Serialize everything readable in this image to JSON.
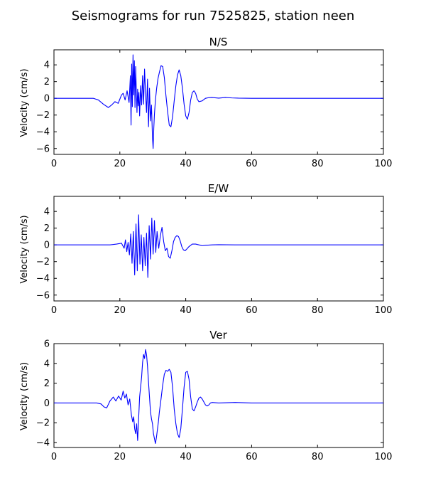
{
  "figure": {
    "title": "Seismograms for run 7525825, station neen"
  },
  "chart_data": [
    {
      "type": "line",
      "title": "N/S",
      "xlabel": "",
      "ylabel": "Velocity (cm/s)",
      "xlim": [
        0,
        100
      ],
      "ylim": [
        -6.7,
        5.8
      ],
      "xticks": [
        0,
        20,
        40,
        60,
        80,
        100
      ],
      "yticks": [
        -6,
        -4,
        -2,
        0,
        2,
        4
      ],
      "line_color": "#0000ff",
      "series": [
        {
          "x": [
            0,
            12,
            13.5,
            15,
            16.5,
            17.5,
            18.5,
            19.5,
            20.5,
            21,
            21.6,
            22.2,
            22.8,
            23.2,
            23.4,
            23.6,
            23.8,
            24,
            24.2,
            24.4,
            24.6,
            24.8,
            25,
            25.2,
            25.4,
            25.6,
            25.8,
            26,
            26.3,
            26.6,
            26.9,
            27.2,
            27.5,
            27.8,
            28.1,
            28.4,
            28.7,
            29,
            29.3,
            29.6,
            29.9,
            30.1,
            30.3,
            30.5,
            30.8,
            31.2,
            31.6,
            32,
            32.5,
            33,
            33.5,
            34,
            34.5,
            35,
            35.5,
            36,
            36.5,
            37,
            37.5,
            38,
            38.5,
            39,
            39.5,
            40,
            40.5,
            41,
            41.5,
            42,
            42.5,
            43,
            43.5,
            44,
            45,
            46,
            47,
            48,
            50,
            52,
            54,
            56,
            60,
            70,
            80,
            90,
            100
          ],
          "y": [
            0,
            0,
            -0.2,
            -0.7,
            -1.1,
            -0.8,
            -0.4,
            -0.6,
            0.4,
            0.6,
            -0.2,
            0.9,
            -0.5,
            2.7,
            -3.2,
            4.1,
            -1,
            5.2,
            0.4,
            4.5,
            -1.1,
            3.8,
            0.9,
            -1.7,
            1.1,
            -0.9,
            0.7,
            -2.1,
            1.5,
            -0.8,
            2.7,
            -0.7,
            3.5,
            0.6,
            -1.7,
            2.3,
            -3.4,
            1.2,
            -2.7,
            -0.8,
            -4.6,
            -6,
            -3.6,
            -1.9,
            -0.2,
            1.3,
            2.4,
            3.1,
            3.9,
            3.8,
            2.5,
            0.3,
            -1.6,
            -3.2,
            -3.4,
            -2.2,
            -0.3,
            1.5,
            2.8,
            3.4,
            2.7,
            1.2,
            -0.7,
            -2.1,
            -2.5,
            -1.7,
            -0.2,
            0.7,
            0.9,
            0.6,
            -0.1,
            -0.4,
            -0.3,
            0,
            0.08,
            0.1,
            0.02,
            0.1,
            0.05,
            0.02,
            0,
            0,
            0,
            0,
            0
          ]
        }
      ]
    },
    {
      "type": "line",
      "title": "E/W",
      "xlabel": "",
      "ylabel": "Velocity (cm/s)",
      "xlim": [
        0,
        100
      ],
      "ylim": [
        -6.7,
        5.8
      ],
      "xticks": [
        0,
        20,
        40,
        60,
        80,
        100
      ],
      "yticks": [
        -6,
        -4,
        -2,
        0,
        2,
        4
      ],
      "line_color": "#0000ff",
      "series": [
        {
          "x": [
            0,
            17,
            19,
            20.5,
            21.3,
            21.7,
            22.1,
            22.5,
            22.9,
            23.3,
            23.7,
            24.1,
            24.5,
            24.9,
            25.3,
            25.7,
            26.1,
            26.5,
            26.9,
            27.3,
            27.7,
            28.1,
            28.5,
            28.9,
            29.3,
            29.7,
            30.1,
            30.5,
            30.9,
            31.3,
            31.8,
            32.3,
            32.8,
            33.3,
            33.8,
            34.3,
            34.8,
            35.3,
            35.8,
            36.3,
            36.8,
            37.3,
            37.8,
            38.3,
            38.8,
            39.3,
            39.8,
            40.3,
            41,
            42,
            43,
            44,
            45,
            46,
            48,
            50,
            55,
            60,
            70,
            80,
            90,
            100
          ],
          "y": [
            0,
            0,
            0.1,
            0.2,
            -0.4,
            0.6,
            -0.8,
            0.3,
            -1.2,
            1.3,
            -2.2,
            1.6,
            -3.6,
            2.5,
            -3.1,
            3.6,
            -2.3,
            1.2,
            -3.1,
            0.9,
            -2.5,
            1.4,
            -3.9,
            2.3,
            -1.7,
            3.2,
            -1.1,
            2.9,
            -0.9,
            1.6,
            -0.4,
            1.1,
            2.1,
            0.4,
            -0.7,
            -0.4,
            -1.4,
            -1.6,
            -0.7,
            0.4,
            0.9,
            1.1,
            1,
            0.5,
            -0.2,
            -0.6,
            -0.7,
            -0.5,
            -0.2,
            0.1,
            0.1,
            0,
            -0.1,
            -0.05,
            0,
            0.02,
            0,
            0,
            0,
            0,
            0,
            0
          ]
        }
      ]
    },
    {
      "type": "line",
      "title": "Ver",
      "xlabel": "",
      "ylabel": "Velocity (cm/s)",
      "xlim": [
        0,
        100
      ],
      "ylim": [
        -4.5,
        6
      ],
      "xticks": [
        0,
        20,
        40,
        60,
        80,
        100
      ],
      "yticks": [
        -4,
        -2,
        0,
        2,
        4,
        6
      ],
      "line_color": "#0000ff",
      "series": [
        {
          "x": [
            0,
            13,
            14.3,
            15.2,
            16,
            17,
            18,
            18.8,
            19.6,
            20.4,
            21,
            21.5,
            22,
            22.5,
            23,
            23.5,
            23.9,
            24.2,
            24.5,
            24.8,
            25.1,
            25.4,
            25.7,
            26,
            26.3,
            26.6,
            26.9,
            27.2,
            27.5,
            27.8,
            28.1,
            28.4,
            28.7,
            29,
            29.3,
            29.6,
            29.9,
            30.2,
            30.5,
            30.8,
            31.1,
            31.4,
            31.7,
            32,
            32.5,
            33,
            33.5,
            34,
            34.5,
            35,
            35.5,
            36,
            36.5,
            37,
            37.5,
            38,
            38.5,
            39,
            39.5,
            40,
            40.5,
            41,
            41.5,
            42,
            42.5,
            43,
            43.5,
            44,
            44.5,
            45,
            45.5,
            46,
            46.5,
            47,
            47.5,
            48,
            50,
            55,
            60,
            70,
            80,
            90,
            100
          ],
          "y": [
            0,
            0,
            -0.1,
            -0.4,
            -0.5,
            0.2,
            0.6,
            0.2,
            0.7,
            0.3,
            1.2,
            0.5,
            0.9,
            -0.2,
            0.4,
            -1.2,
            -1.9,
            -1.4,
            -2.6,
            -3.1,
            -2.1,
            -3.8,
            -1.6,
            0.6,
            1.6,
            2.6,
            4.1,
            4.9,
            4.5,
            5.4,
            4.9,
            3.7,
            2.1,
            0.6,
            -0.9,
            -1.6,
            -2.1,
            -3.1,
            -3.6,
            -4.1,
            -3.5,
            -2.7,
            -1.9,
            -0.9,
            0.4,
            1.8,
            2.9,
            3.3,
            3.2,
            3.4,
            3.1,
            1.6,
            -0.6,
            -2.1,
            -3.1,
            -3.5,
            -2.6,
            -0.6,
            1.6,
            3.1,
            3.2,
            2.4,
            0.6,
            -0.6,
            -0.8,
            -0.4,
            0.1,
            0.5,
            0.6,
            0.4,
            0.1,
            -0.2,
            -0.3,
            -0.2,
            0,
            0.05,
            0,
            0.05,
            0,
            0,
            0,
            0,
            0
          ]
        }
      ]
    }
  ]
}
